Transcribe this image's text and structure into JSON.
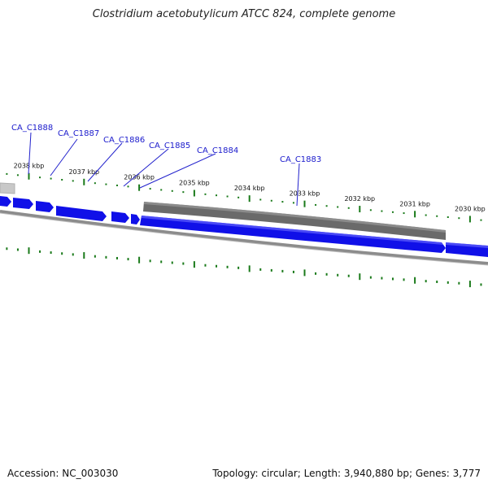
{
  "title": "Clostridium acetobutylicum ATCC 824, complete genome",
  "accession_text": "Accession: NC_003030",
  "summary_text": "Topology: circular; Length: 3,940,880 bp; Genes: 3,777",
  "colors": {
    "forward_gene": "#1010e8",
    "forward_gene_highlight": "#7070ff",
    "reverse_gene": "#6a6a6a",
    "backbone": "#8c8c8c",
    "tick": "#1a7a1a",
    "label_line": "#2020cc",
    "label_text": "#1a1acc"
  },
  "ticks_upper": [
    "2038 kbp",
    "2037 kbp",
    "2036 kbp",
    "2035 kbp",
    "2034 kbp",
    "2033 kbp",
    "2032 kbp",
    "2031 kbp",
    "2030 kbp"
  ],
  "gene_labels": [
    "CA_C1888",
    "CA_C1887",
    "CA_C1886",
    "CA_C1885",
    "CA_C1884",
    "CA_C1883"
  ]
}
